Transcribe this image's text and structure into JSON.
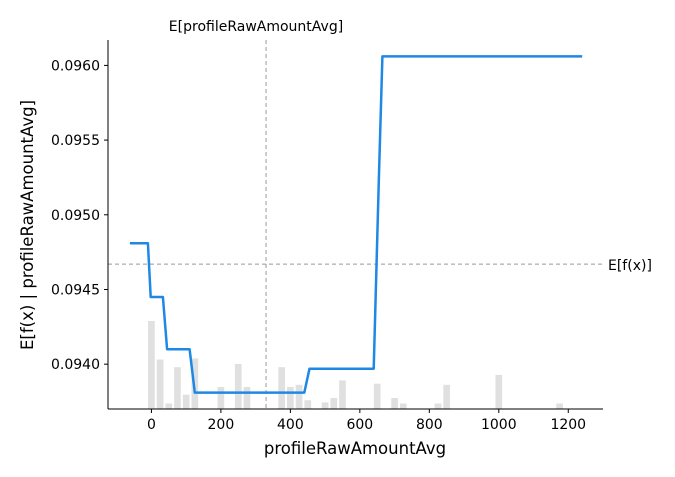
{
  "chart_data": {
    "type": "line",
    "xlabel": "profileRawAmountAvg",
    "ylabel": "E[f(x) | profileRawAmountAvg]",
    "xlim": [
      -125,
      1300
    ],
    "ylim": [
      0.0937,
      0.09617
    ],
    "x_ticks": [
      0,
      200,
      400,
      600,
      800,
      1000,
      1200
    ],
    "x_tick_labels": [
      "0",
      "200",
      "400",
      "600",
      "800",
      "1000",
      "1200"
    ],
    "y_ticks": [
      0.094,
      0.0945,
      0.095,
      0.0955,
      0.096
    ],
    "y_tick_labels": [
      "0.0940",
      "0.0945",
      "0.0950",
      "0.0955",
      "0.0960"
    ],
    "grid": false,
    "colors": {
      "line": "#1E88E5",
      "hist": "#E0E0E0",
      "ref": "#999999"
    },
    "series": [
      {
        "x": [
          -62,
          -10,
          -2,
          10,
          33,
          45,
          110,
          125,
          145,
          440,
          455,
          640,
          655,
          665,
          680,
          1240
        ],
        "y": [
          0.09481,
          0.09481,
          0.09445,
          0.09445,
          0.09445,
          0.0941,
          0.0941,
          0.09381,
          0.09381,
          0.09381,
          0.09397,
          0.09397,
          0.09525,
          0.09606,
          0.09606,
          0.09606
        ]
      }
    ],
    "annotations": [
      {
        "text": "E[profileRawAmountAvg]",
        "x": 330,
        "axis": "vertical-line"
      },
      {
        "text": "E[f(x)]",
        "y": 0.09467,
        "axis": "horizontal-line"
      }
    ],
    "histogram": {
      "bin_width": 25,
      "bins": [
        {
          "x": 0,
          "rel": 0.8
        },
        {
          "x": 25,
          "rel": 0.45
        },
        {
          "x": 50,
          "rel": 0.05
        },
        {
          "x": 75,
          "rel": 0.38
        },
        {
          "x": 100,
          "rel": 0.13
        },
        {
          "x": 125,
          "rel": 0.46
        },
        {
          "x": 200,
          "rel": 0.2
        },
        {
          "x": 250,
          "rel": 0.41
        },
        {
          "x": 275,
          "rel": 0.2
        },
        {
          "x": 375,
          "rel": 0.38
        },
        {
          "x": 400,
          "rel": 0.2
        },
        {
          "x": 425,
          "rel": 0.22
        },
        {
          "x": 450,
          "rel": 0.08
        },
        {
          "x": 500,
          "rel": 0.06
        },
        {
          "x": 525,
          "rel": 0.1
        },
        {
          "x": 550,
          "rel": 0.26
        },
        {
          "x": 650,
          "rel": 0.23
        },
        {
          "x": 700,
          "rel": 0.1
        },
        {
          "x": 725,
          "rel": 0.05
        },
        {
          "x": 825,
          "rel": 0.05
        },
        {
          "x": 850,
          "rel": 0.22
        },
        {
          "x": 1000,
          "rel": 0.31
        },
        {
          "x": 1175,
          "rel": 0.05
        }
      ]
    }
  }
}
